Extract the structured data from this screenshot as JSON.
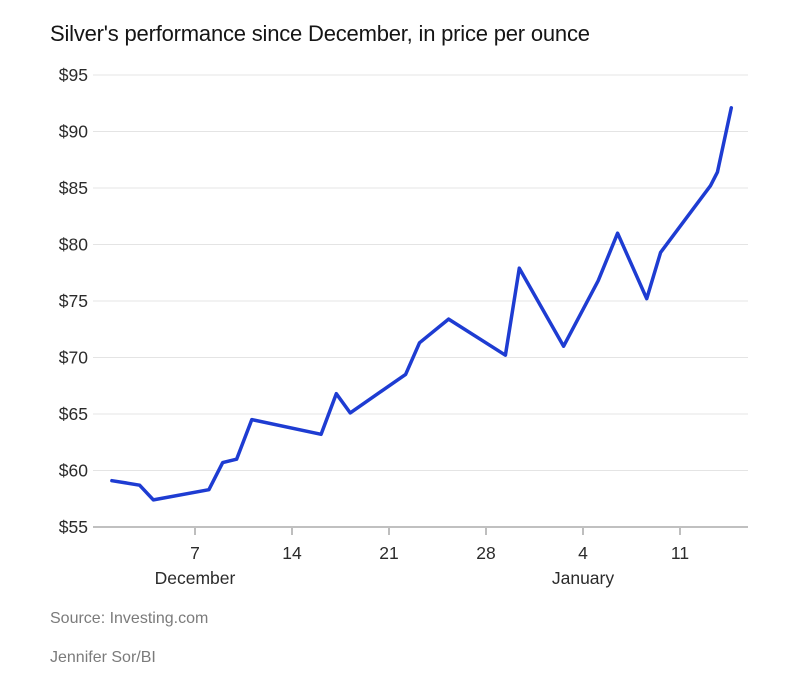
{
  "title": "Silver's performance since December, in price per ounce",
  "source": "Source: Investing.com",
  "byline": "Jennifer Sor/BI",
  "colors": {
    "background": "#ffffff",
    "line": "#1e3cd2",
    "grid": "#e4e4e4",
    "axis": "#9b9b9b",
    "title": "#151515",
    "tick_label": "#2b2b2b",
    "footer": "#7b7b7b"
  },
  "chart_data": {
    "type": "line",
    "title": "Silver's performance since December, in price per ounce",
    "xlabel": "",
    "ylabel": "price per ounce (USD)",
    "y_range": [
      55,
      95
    ],
    "grid": true,
    "legend": "none",
    "y_ticks": [
      {
        "value": 55,
        "label": "$55"
      },
      {
        "value": 60,
        "label": "$60"
      },
      {
        "value": 65,
        "label": "$65"
      },
      {
        "value": 70,
        "label": "$70"
      },
      {
        "value": 75,
        "label": "$75"
      },
      {
        "value": 80,
        "label": "$80"
      },
      {
        "value": 85,
        "label": "$85"
      },
      {
        "value": 90,
        "label": "$90"
      },
      {
        "value": 95,
        "label": "$95"
      }
    ],
    "x_ticks": [
      {
        "day": 7,
        "label": "7"
      },
      {
        "day": 14,
        "label": "14"
      },
      {
        "day": 21,
        "label": "21"
      },
      {
        "day": 28,
        "label": "28"
      },
      {
        "day": 35,
        "label": "4"
      },
      {
        "day": 42,
        "label": "11"
      }
    ],
    "month_labels": [
      {
        "day": 7,
        "label": "December"
      },
      {
        "day": 35,
        "label": "January"
      }
    ],
    "points": [
      {
        "date": "Dec 1",
        "day": 1.0,
        "price": 59.1
      },
      {
        "date": "Dec 2",
        "day": 2.0,
        "price": 58.9
      },
      {
        "date": "Dec 3",
        "day": 3.0,
        "price": 58.7
      },
      {
        "date": "Dec 4",
        "day": 4.0,
        "price": 57.4
      },
      {
        "date": "Dec 8",
        "day": 8.0,
        "price": 58.3
      },
      {
        "date": "Dec 9",
        "day": 9.0,
        "price": 60.7
      },
      {
        "date": "Dec 10",
        "day": 10.0,
        "price": 61.0
      },
      {
        "date": "Dec 11",
        "day": 11.1,
        "price": 64.5
      },
      {
        "date": "Dec 16",
        "day": 16.1,
        "price": 63.2
      },
      {
        "date": "Dec 17",
        "day": 17.2,
        "price": 66.8
      },
      {
        "date": "Dec 18",
        "day": 18.2,
        "price": 65.1
      },
      {
        "date": "Dec 22",
        "day": 22.2,
        "price": 68.5
      },
      {
        "date": "Dec 23",
        "day": 23.2,
        "price": 71.3
      },
      {
        "date": "Dec 25",
        "day": 25.3,
        "price": 73.4
      },
      {
        "date": "Dec 29",
        "day": 29.4,
        "price": 70.2
      },
      {
        "date": "Dec 30",
        "day": 30.4,
        "price": 77.9
      },
      {
        "date": "Jan 2",
        "day": 33.6,
        "price": 71.0
      },
      {
        "date": "Jan 5",
        "day": 36.1,
        "price": 76.8
      },
      {
        "date": "Jan 6",
        "day": 37.5,
        "price": 81.0
      },
      {
        "date": "Jan 9",
        "day": 39.6,
        "price": 75.2
      },
      {
        "date": "Jan 10",
        "day": 40.6,
        "price": 79.3
      },
      {
        "date": "Jan 13",
        "day": 44.2,
        "price": 85.2
      },
      {
        "date": "Jan 14",
        "day": 44.7,
        "price": 86.4
      },
      {
        "date": "Jan 15",
        "day": 45.7,
        "price": 92.1
      }
    ]
  }
}
